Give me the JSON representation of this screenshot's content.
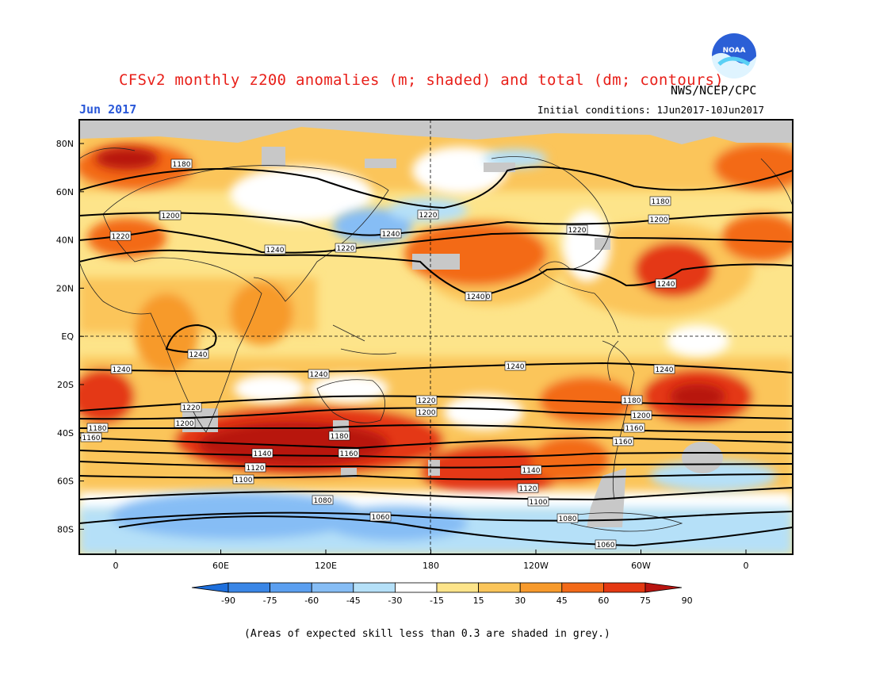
{
  "header": {
    "title": "CFSv2 monthly z200 anomalies (m; shaded) and total (dm; contours)",
    "month": "Jun 2017",
    "org": "NWS/NCEP/CPC",
    "initial_conditions": "Initial conditions: 1Jun2017-10Jun2017",
    "logo_text": "NOAA"
  },
  "map": {
    "lat_labels": [
      "80N",
      "60N",
      "40N",
      "20N",
      "EQ",
      "20S",
      "40S",
      "60S",
      "80S"
    ],
    "lon_labels": [
      "0",
      "60E",
      "120E",
      "180",
      "120W",
      "60W",
      "0"
    ],
    "contour_labels": [
      "1180",
      "1200",
      "1220",
      "1240",
      "1160",
      "1200",
      "1220",
      "1240",
      "1180",
      "1200",
      "1240",
      "1220",
      "1240",
      "1240",
      "1240",
      "1240",
      "1240",
      "1220",
      "1200",
      "1180",
      "1160",
      "1140",
      "1120",
      "1100",
      "1080",
      "1060",
      "1220",
      "1200",
      "1180",
      "1160",
      "1140",
      "1120",
      "1100",
      "1080",
      "1060",
      "1240",
      "1220",
      "1200",
      "1160",
      "1180",
      "1240"
    ]
  },
  "colorbar": {
    "ticks": [
      "-90",
      "-75",
      "-60",
      "-45",
      "-30",
      "-15",
      "15",
      "30",
      "45",
      "60",
      "75",
      "90"
    ],
    "colors": [
      "#1e6fdc",
      "#3a86e6",
      "#5b9ff0",
      "#86bdf5",
      "#b5e0f8",
      "#ffffff",
      "#fde48a",
      "#fbc55a",
      "#f79a2c",
      "#f36a18",
      "#e43812",
      "#b81410"
    ]
  },
  "footnote": "(Areas of expected skill less than 0.3 are shaded in grey.)"
}
